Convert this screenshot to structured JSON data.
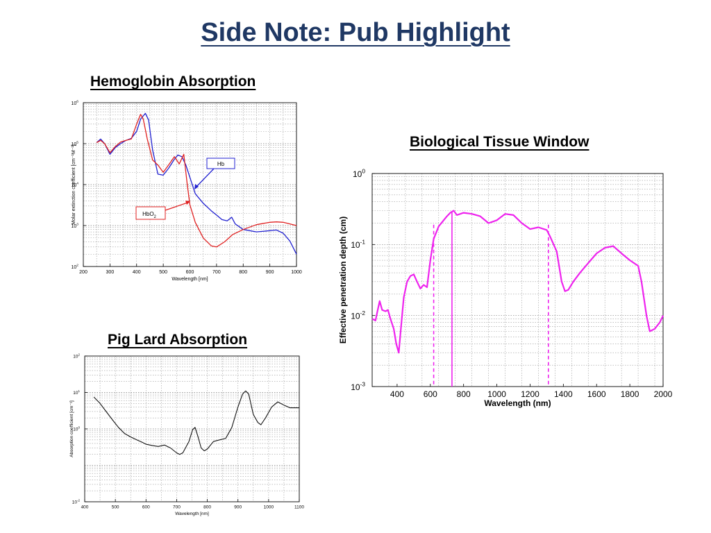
{
  "slide": {
    "title": "Side Note: Pub Highlight",
    "hemo_title": "Hemoglobin Absorption",
    "tissue_title": "Biological Tissue Window",
    "lard_title": "Pig Lard Absorption"
  },
  "chart_data": [
    {
      "id": "hemoglobin",
      "type": "line",
      "xlabel": "Wavelength [nm]",
      "ylabel": "Molar extinction coefficient [cm⁻¹M⁻¹]",
      "xlim": [
        200,
        1000
      ],
      "ylim": [
        100,
        1000000
      ],
      "log_y": true,
      "grid": true,
      "x_ticks": [
        200,
        300,
        400,
        500,
        600,
        700,
        800,
        900,
        1000
      ],
      "y_ticks": [
        {
          "value": 100,
          "label": "10",
          "exp": "2"
        },
        {
          "value": 1000,
          "label": "10",
          "exp": "3"
        },
        {
          "value": 10000,
          "label": "10",
          "exp": "4"
        },
        {
          "value": 100000,
          "label": "10",
          "exp": "5"
        },
        {
          "value": 1000000,
          "label": "10",
          "exp": "6"
        }
      ],
      "annotations": [
        {
          "text": "Hb",
          "color": "#1f1fd0"
        },
        {
          "text": "HbO",
          "sub": "2",
          "color": "#e02020"
        }
      ],
      "series": [
        {
          "name": "Hb",
          "color": "#1f1fd0",
          "points": [
            [
              250,
              106000
            ],
            [
              265,
              130000
            ],
            [
              280,
              100000
            ],
            [
              300,
              55000
            ],
            [
              320,
              80000
            ],
            [
              340,
              100000
            ],
            [
              360,
              120000
            ],
            [
              380,
              135000
            ],
            [
              400,
              200000
            ],
            [
              415,
              400000
            ],
            [
              433,
              550000
            ],
            [
              445,
              380000
            ],
            [
              460,
              70000
            ],
            [
              480,
              18000
            ],
            [
              500,
              17000
            ],
            [
              520,
              25000
            ],
            [
              540,
              40000
            ],
            [
              555,
              53000
            ],
            [
              570,
              48000
            ],
            [
              585,
              30000
            ],
            [
              600,
              15000
            ],
            [
              620,
              6000
            ],
            [
              650,
              3500
            ],
            [
              680,
              2300
            ],
            [
              700,
              1800
            ],
            [
              720,
              1400
            ],
            [
              740,
              1300
            ],
            [
              757,
              1600
            ],
            [
              770,
              1100
            ],
            [
              800,
              800
            ],
            [
              850,
              700
            ],
            [
              900,
              750
            ],
            [
              925,
              780
            ],
            [
              950,
              650
            ],
            [
              975,
              420
            ],
            [
              1000,
              200
            ]
          ]
        },
        {
          "name": "HbO2",
          "color": "#e02020",
          "points": [
            [
              250,
              106000
            ],
            [
              265,
              120000
            ],
            [
              280,
              100000
            ],
            [
              300,
              60000
            ],
            [
              320,
              85000
            ],
            [
              340,
              110000
            ],
            [
              360,
              120000
            ],
            [
              380,
              130000
            ],
            [
              400,
              300000
            ],
            [
              415,
              520000
            ],
            [
              425,
              400000
            ],
            [
              440,
              130000
            ],
            [
              460,
              40000
            ],
            [
              480,
              30000
            ],
            [
              500,
              20000
            ],
            [
              520,
              30000
            ],
            [
              542,
              48000
            ],
            [
              560,
              32000
            ],
            [
              577,
              55000
            ],
            [
              590,
              10000
            ],
            [
              600,
              3200
            ],
            [
              620,
              1200
            ],
            [
              650,
              500
            ],
            [
              680,
              320
            ],
            [
              700,
              300
            ],
            [
              730,
              400
            ],
            [
              760,
              600
            ],
            [
              800,
              800
            ],
            [
              850,
              1050
            ],
            [
              900,
              1200
            ],
            [
              925,
              1230
            ],
            [
              950,
              1200
            ],
            [
              1000,
              1000
            ]
          ]
        }
      ]
    },
    {
      "id": "tissue",
      "type": "line",
      "xlabel": "Wavelength (nm)",
      "ylabel": "Effective penetration depth (cm)",
      "xlim": [
        250,
        2000
      ],
      "ylim": [
        0.001,
        1
      ],
      "log_y": true,
      "grid": true,
      "x_ticks": [
        400,
        600,
        800,
        1000,
        1200,
        1400,
        1600,
        1800,
        2000
      ],
      "y_ticks": [
        {
          "value": 1,
          "label": "10",
          "exp": "0"
        },
        {
          "value": 0.1,
          "label": "10",
          "exp": "-1"
        },
        {
          "value": 0.01,
          "label": "10",
          "exp": "-2"
        },
        {
          "value": 0.001,
          "label": "10",
          "exp": "-3"
        }
      ],
      "series": [
        {
          "name": "",
          "color": "#ee22ee",
          "points": [
            [
              250,
              0.009
            ],
            [
              270,
              0.0085
            ],
            [
              280,
              0.011
            ],
            [
              295,
              0.016
            ],
            [
              310,
              0.012
            ],
            [
              330,
              0.0115
            ],
            [
              345,
              0.012
            ],
            [
              360,
              0.009
            ],
            [
              380,
              0.0065
            ],
            [
              395,
              0.004
            ],
            [
              410,
              0.003
            ],
            [
              420,
              0.0055
            ],
            [
              430,
              0.01
            ],
            [
              440,
              0.018
            ],
            [
              460,
              0.03
            ],
            [
              480,
              0.036
            ],
            [
              500,
              0.038
            ],
            [
              520,
              0.03
            ],
            [
              540,
              0.024
            ],
            [
              560,
              0.027
            ],
            [
              580,
              0.025
            ],
            [
              600,
              0.06
            ],
            [
              620,
              0.12
            ],
            [
              650,
              0.18
            ],
            [
              680,
              0.22
            ],
            [
              700,
              0.25
            ],
            [
              720,
              0.28
            ],
            [
              740,
              0.3
            ],
            [
              760,
              0.26
            ],
            [
              780,
              0.27
            ],
            [
              800,
              0.28
            ],
            [
              850,
              0.27
            ],
            [
              900,
              0.25
            ],
            [
              950,
              0.2
            ],
            [
              1000,
              0.22
            ],
            [
              1050,
              0.27
            ],
            [
              1100,
              0.26
            ],
            [
              1150,
              0.2
            ],
            [
              1200,
              0.165
            ],
            [
              1250,
              0.175
            ],
            [
              1300,
              0.16
            ],
            [
              1320,
              0.13
            ],
            [
              1360,
              0.08
            ],
            [
              1390,
              0.03
            ],
            [
              1410,
              0.022
            ],
            [
              1430,
              0.023
            ],
            [
              1460,
              0.03
            ],
            [
              1500,
              0.04
            ],
            [
              1550,
              0.055
            ],
            [
              1600,
              0.075
            ],
            [
              1650,
              0.09
            ],
            [
              1700,
              0.095
            ],
            [
              1750,
              0.075
            ],
            [
              1800,
              0.06
            ],
            [
              1850,
              0.05
            ],
            [
              1870,
              0.03
            ],
            [
              1900,
              0.01
            ],
            [
              1920,
              0.006
            ],
            [
              1950,
              0.0065
            ],
            [
              1980,
              0.008
            ],
            [
              2000,
              0.01
            ]
          ]
        }
      ],
      "markers": [
        {
          "x": 620,
          "style": "dashed"
        },
        {
          "x": 730,
          "style": "solid"
        },
        {
          "x": 1310,
          "style": "dashed"
        }
      ]
    },
    {
      "id": "lard",
      "type": "line",
      "xlabel": "Wavelength [nm]",
      "ylabel": "Absorption coefficient [cm⁻¹]",
      "xlim": [
        400,
        1100
      ],
      "ylim": [
        0.01,
        100
      ],
      "log_y": true,
      "grid": true,
      "x_ticks": [
        400,
        500,
        600,
        700,
        800,
        900,
        1000,
        1100
      ],
      "y_ticks": [
        {
          "value": 0.01,
          "label": "10",
          "exp": "-2"
        },
        {
          "value": 1,
          "label": "10",
          "exp": "0"
        },
        {
          "value": 10,
          "label": "10",
          "exp": "1"
        },
        {
          "value": 100,
          "label": "10",
          "exp": "2"
        }
      ],
      "series": [
        {
          "name": "",
          "color": "#111111",
          "points": [
            [
              430,
              7.5
            ],
            [
              450,
              5
            ],
            [
              470,
              3
            ],
            [
              490,
              1.8
            ],
            [
              510,
              1.1
            ],
            [
              530,
              0.75
            ],
            [
              550,
              0.6
            ],
            [
              570,
              0.5
            ],
            [
              590,
              0.42
            ],
            [
              600,
              0.38
            ],
            [
              620,
              0.35
            ],
            [
              640,
              0.33
            ],
            [
              660,
              0.36
            ],
            [
              680,
              0.3
            ],
            [
              700,
              0.22
            ],
            [
              710,
              0.2
            ],
            [
              720,
              0.22
            ],
            [
              740,
              0.45
            ],
            [
              752,
              0.95
            ],
            [
              760,
              1.1
            ],
            [
              770,
              0.6
            ],
            [
              780,
              0.3
            ],
            [
              790,
              0.25
            ],
            [
              800,
              0.28
            ],
            [
              820,
              0.45
            ],
            [
              840,
              0.5
            ],
            [
              860,
              0.55
            ],
            [
              880,
              1.1
            ],
            [
              900,
              4
            ],
            [
              915,
              9
            ],
            [
              925,
              11
            ],
            [
              935,
              9
            ],
            [
              950,
              2.5
            ],
            [
              965,
              1.5
            ],
            [
              975,
              1.3
            ],
            [
              990,
              2
            ],
            [
              1010,
              4
            ],
            [
              1030,
              5.5
            ],
            [
              1050,
              4.5
            ],
            [
              1070,
              3.8
            ],
            [
              1100,
              3.8
            ]
          ]
        }
      ]
    }
  ]
}
